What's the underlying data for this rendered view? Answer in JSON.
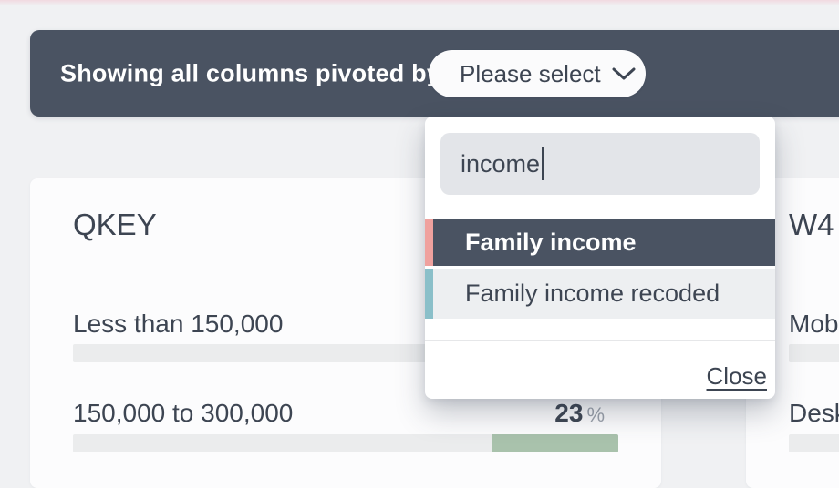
{
  "toolbar": {
    "label": "Showing all columns pivoted by",
    "select_value": "Please select"
  },
  "dropdown": {
    "search_value": "income",
    "options": [
      {
        "label": "Family income",
        "accent": "#efa19e",
        "selected": true
      },
      {
        "label": "Family income recoded",
        "accent": "#8abfc9",
        "selected": false
      }
    ],
    "close_label": "Close"
  },
  "colors": {
    "toolbar_background": "#4a5362",
    "highlight_background": "#4a5362",
    "bar_gray": "#ebeced",
    "bar_green": "#a9c2ac",
    "page_background": "#f0f1f3"
  },
  "cards": [
    {
      "title": "QKEY",
      "rows": [
        {
          "label": "Less than 150,000",
          "value": "",
          "unit": "",
          "bar": [
            {
              "color": "#ebeced",
              "fraction": 1
            }
          ]
        },
        {
          "label": "150,000 to 300,000",
          "value": "23",
          "unit": "%",
          "bar": [
            {
              "color": "#ebeced",
              "fraction": 0.77
            },
            {
              "color": "#a9c2ac",
              "fraction": 0.23
            }
          ]
        }
      ]
    },
    {
      "title": "W4",
      "rows": [
        {
          "label": "Mob",
          "value": "",
          "unit": "",
          "bar": [
            {
              "color": "#ebeced",
              "fraction": 1
            }
          ]
        },
        {
          "label": "Desk",
          "value": "",
          "unit": "",
          "bar": [
            {
              "color": "#ebeced",
              "fraction": 1
            }
          ]
        }
      ]
    }
  ]
}
